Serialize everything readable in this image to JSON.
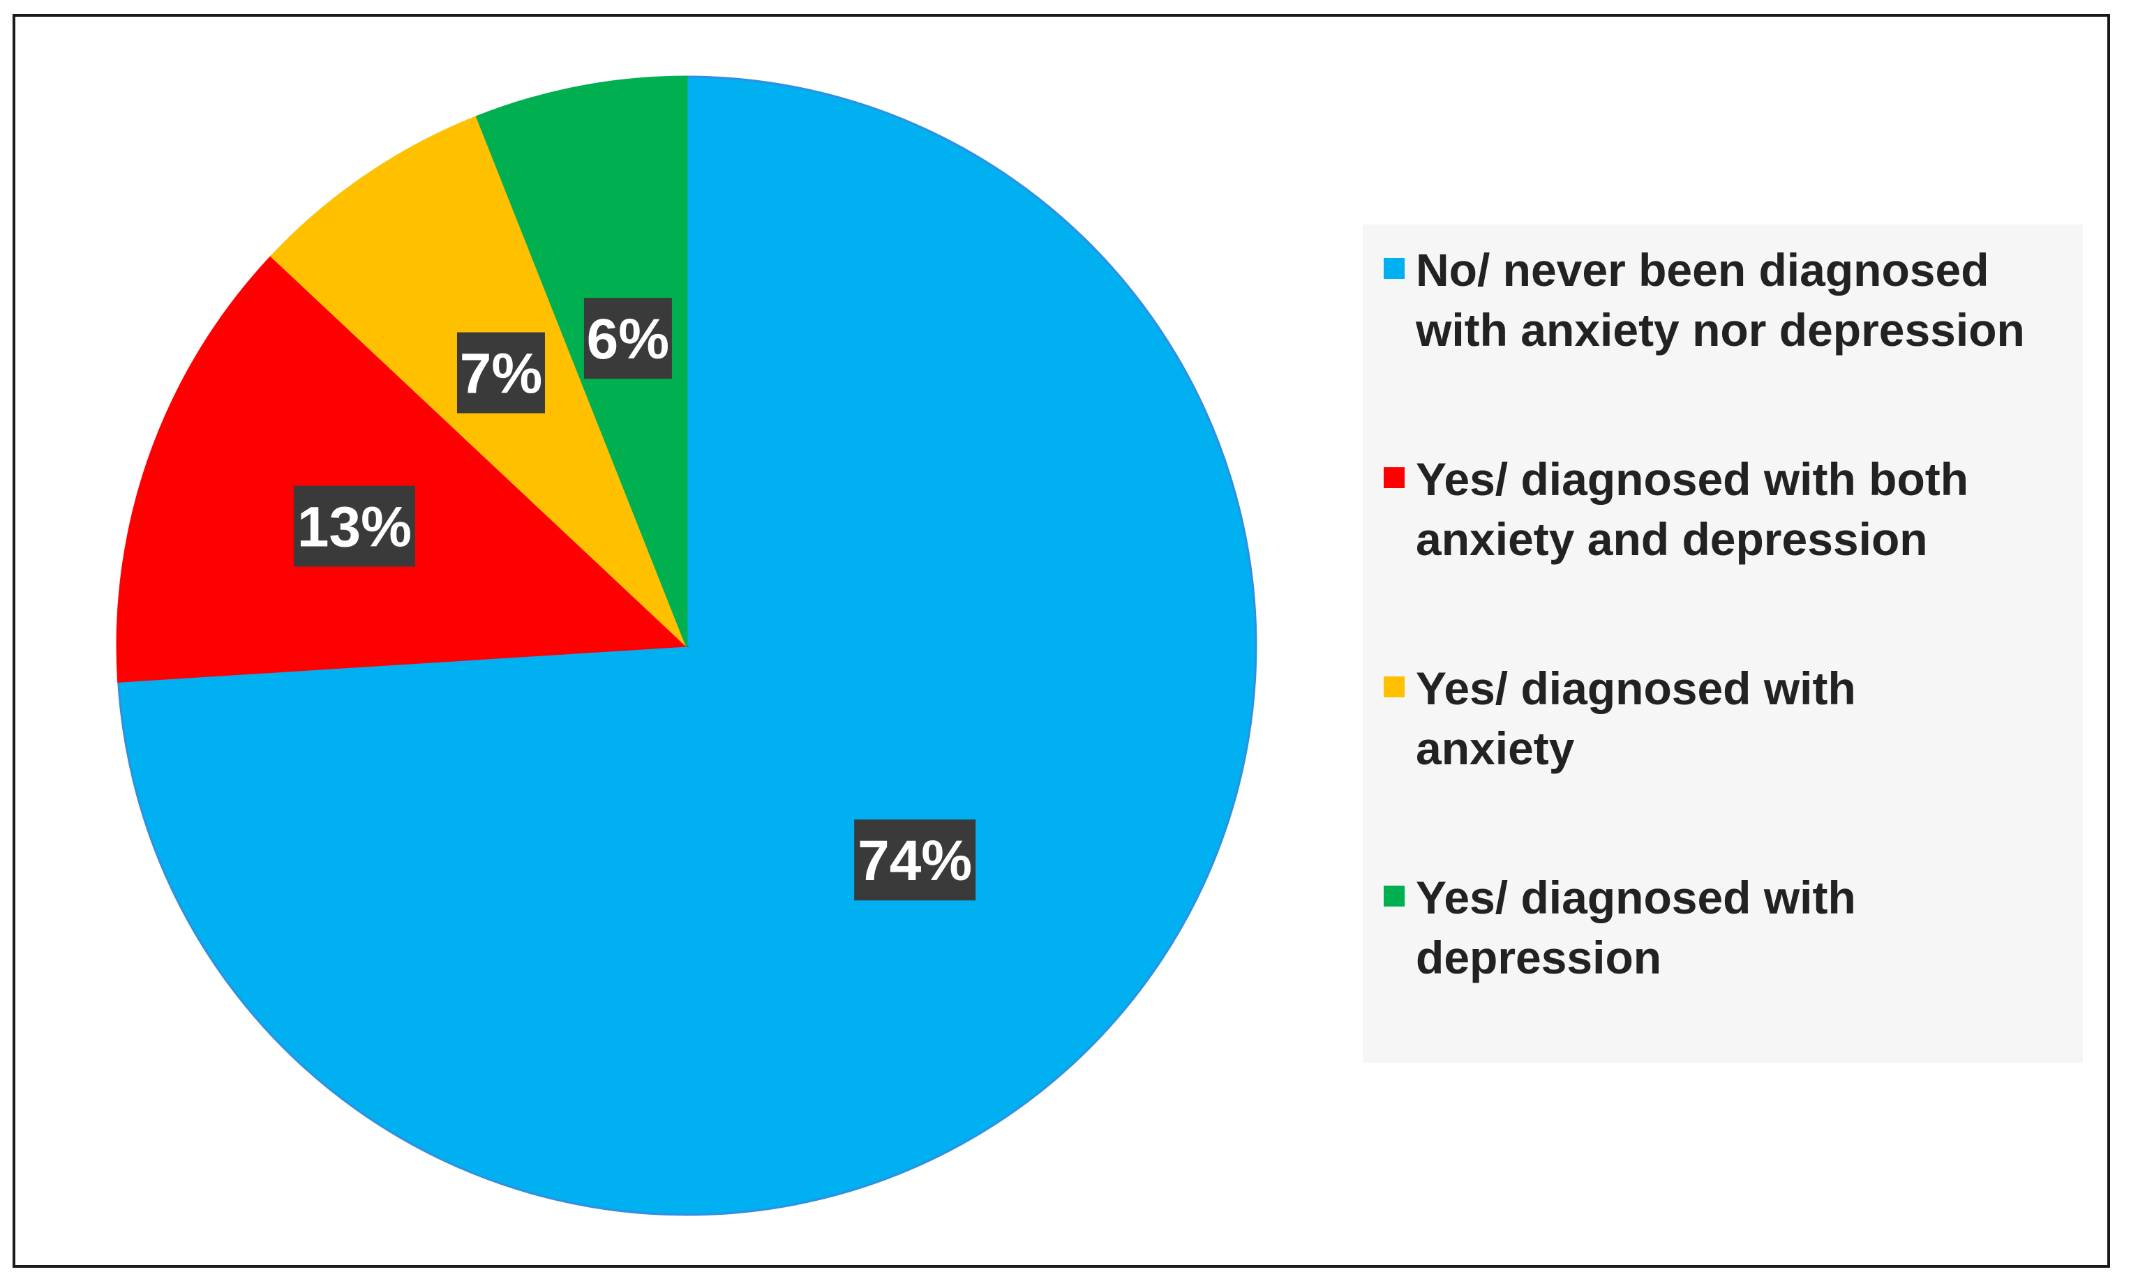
{
  "chart_data": {
    "type": "pie",
    "title": "",
    "slices": [
      {
        "label": "No/ never been diagnosed with anxiety nor depression",
        "value": 74,
        "display": "74%",
        "color": "#00B0F0"
      },
      {
        "label": "Yes/ diagnosed with both anxiety and depression",
        "value": 13,
        "display": "13%",
        "color": "#FF0000"
      },
      {
        "label": "Yes/ diagnosed with anxiety",
        "value": 7,
        "display": "7%",
        "color": "#FFC000"
      },
      {
        "label": "Yes/ diagnosed with depression",
        "value": 6,
        "display": "6%",
        "color": "#00B050"
      }
    ],
    "legend_position": "right"
  },
  "legend": {
    "items": [
      {
        "label": "No/ never been diagnosed with anxiety nor depression",
        "color": "#00B0F0"
      },
      {
        "label": "Yes/ diagnosed with both anxiety and depression",
        "color": "#FF0000"
      },
      {
        "label": "Yes/ diagnosed with anxiety",
        "color": "#FFC000"
      },
      {
        "label": "Yes/ diagnosed with depression",
        "color": "#00B050"
      }
    ]
  }
}
